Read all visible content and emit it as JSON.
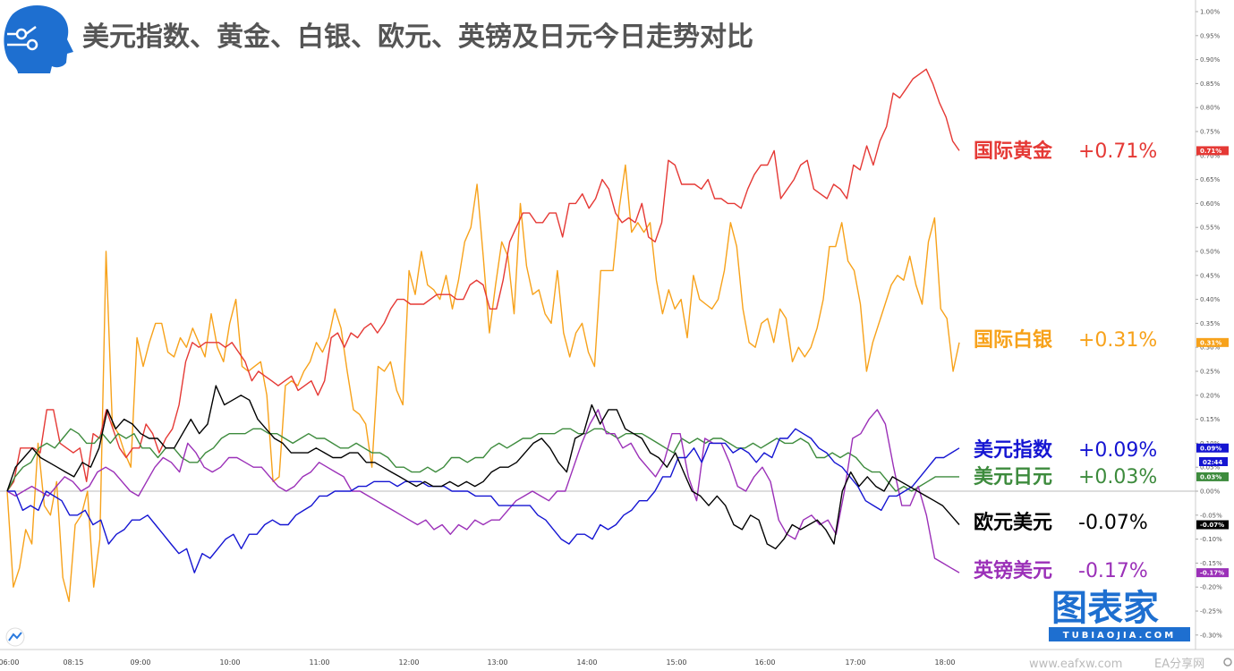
{
  "title": "美元指数、黄金、白银、欧元、英镑及日元今日走势对比",
  "colors": {
    "gold": "#e53935",
    "silver": "#f7a21b",
    "dxy": "#1515d2",
    "jpy": "#3d8b3d",
    "eur": "#000000",
    "gbp": "#9b30b8",
    "brand": "#1e6fd0",
    "zero_line": "#bbbbbb"
  },
  "watermark": {
    "main": "图表家",
    "sub": "TUBIAOJIA.COM"
  },
  "footer": {
    "site": "www.eafxw.com",
    "share": "EA分享网"
  },
  "time_badge": "02:44",
  "chart_data": {
    "type": "line",
    "x_ticks": [
      "06:00",
      "08:15",
      "09:00",
      "10:00",
      "11:00",
      "12:00",
      "13:00",
      "14:00",
      "15:00",
      "16:00",
      "17:00",
      "18:00"
    ],
    "y_ticks": [
      "1.00%",
      "0.95%",
      "0.90%",
      "0.85%",
      "0.80%",
      "0.75%",
      "0.70%",
      "0.65%",
      "0.60%",
      "0.55%",
      "0.50%",
      "0.45%",
      "0.40%",
      "0.35%",
      "0.30%",
      "0.25%",
      "0.20%",
      "0.15%",
      "0.10%",
      "0.05%",
      "0.00%",
      "-0.05%",
      "-0.10%",
      "-0.15%",
      "-0.20%",
      "-0.25%",
      "-0.30%"
    ],
    "ylim": [
      -0.33,
      1.02
    ],
    "unit": "%",
    "grid": false,
    "series": [
      {
        "key": "gold",
        "name": "国际黄金",
        "label": "+0.71%",
        "tag": "0.71%",
        "values": [
          0.0,
          0.02,
          0.09,
          0.09,
          0.09,
          0.08,
          0.17,
          0.17,
          0.1,
          0.09,
          0.08,
          0.09,
          0.02,
          0.12,
          0.11,
          0.17,
          0.13,
          0.09,
          0.07,
          0.09,
          0.09,
          0.14,
          0.12,
          0.08,
          0.11,
          0.13,
          0.18,
          0.27,
          0.31,
          0.3,
          0.31,
          0.31,
          0.31,
          0.3,
          0.31,
          0.29,
          0.27,
          0.23,
          0.25,
          0.24,
          0.23,
          0.22,
          0.23,
          0.24,
          0.21,
          0.22,
          0.23,
          0.2,
          0.23,
          0.32,
          0.33,
          0.3,
          0.33,
          0.32,
          0.34,
          0.35,
          0.33,
          0.35,
          0.38,
          0.4,
          0.4,
          0.39,
          0.39,
          0.39,
          0.4,
          0.41,
          0.41,
          0.41,
          0.4,
          0.4,
          0.43,
          0.44,
          0.43,
          0.38,
          0.38,
          0.44,
          0.52,
          0.55,
          0.58,
          0.58,
          0.56,
          0.56,
          0.58,
          0.58,
          0.53,
          0.6,
          0.6,
          0.62,
          0.59,
          0.61,
          0.65,
          0.63,
          0.58,
          0.56,
          0.57,
          0.56,
          0.6,
          0.53,
          0.52,
          0.56,
          0.69,
          0.68,
          0.64,
          0.64,
          0.64,
          0.63,
          0.65,
          0.61,
          0.61,
          0.6,
          0.6,
          0.59,
          0.63,
          0.66,
          0.68,
          0.68,
          0.71,
          0.61,
          0.63,
          0.65,
          0.68,
          0.69,
          0.63,
          0.62,
          0.61,
          0.64,
          0.63,
          0.61,
          0.68,
          0.67,
          0.72,
          0.68,
          0.73,
          0.76,
          0.83,
          0.82,
          0.84,
          0.86,
          0.87,
          0.88,
          0.85,
          0.81,
          0.78,
          0.73,
          0.71
        ]
      },
      {
        "key": "silver",
        "name": "国际白银",
        "label": "+0.31%",
        "tag": "0.31%",
        "values": [
          0.0,
          -0.2,
          -0.16,
          -0.08,
          -0.11,
          0.1,
          -0.03,
          -0.05,
          0.02,
          -0.18,
          -0.23,
          -0.07,
          -0.05,
          0.0,
          -0.2,
          -0.1,
          0.5,
          0.14,
          0.12,
          0.08,
          0.05,
          0.32,
          0.26,
          0.31,
          0.35,
          0.35,
          0.29,
          0.28,
          0.32,
          0.3,
          0.34,
          0.31,
          0.28,
          0.37,
          0.3,
          0.27,
          0.35,
          0.4,
          0.26,
          0.25,
          0.26,
          0.27,
          0.2,
          0.02,
          0.03,
          0.22,
          0.23,
          0.22,
          0.25,
          0.27,
          0.31,
          0.29,
          0.32,
          0.38,
          0.34,
          0.25,
          0.17,
          0.16,
          0.14,
          0.05,
          0.26,
          0.25,
          0.27,
          0.21,
          0.18,
          0.46,
          0.41,
          0.5,
          0.43,
          0.42,
          0.4,
          0.45,
          0.38,
          0.44,
          0.52,
          0.55,
          0.64,
          0.49,
          0.33,
          0.43,
          0.52,
          0.49,
          0.37,
          0.6,
          0.47,
          0.41,
          0.42,
          0.37,
          0.35,
          0.46,
          0.33,
          0.28,
          0.33,
          0.35,
          0.29,
          0.26,
          0.46,
          0.46,
          0.46,
          0.59,
          0.68,
          0.54,
          0.56,
          0.54,
          0.56,
          0.44,
          0.37,
          0.42,
          0.38,
          0.4,
          0.32,
          0.45,
          0.4,
          0.39,
          0.38,
          0.4,
          0.46,
          0.56,
          0.51,
          0.38,
          0.31,
          0.3,
          0.35,
          0.36,
          0.31,
          0.38,
          0.36,
          0.27,
          0.3,
          0.28,
          0.3,
          0.34,
          0.4,
          0.51,
          0.51,
          0.56,
          0.48,
          0.46,
          0.39,
          0.25,
          0.31,
          0.35,
          0.39,
          0.43,
          0.45,
          0.44,
          0.49,
          0.43,
          0.39,
          0.52,
          0.57,
          0.38,
          0.36,
          0.25,
          0.31
        ]
      },
      {
        "key": "dxy",
        "name": "美元指数",
        "label": "+0.09%",
        "tag": "0.09%",
        "values": [
          0.0,
          0.0,
          -0.04,
          -0.03,
          -0.04,
          0.0,
          -0.01,
          -0.02,
          -0.05,
          -0.05,
          -0.04,
          -0.07,
          -0.06,
          -0.11,
          -0.09,
          -0.08,
          -0.06,
          -0.06,
          -0.05,
          -0.07,
          -0.09,
          -0.11,
          -0.13,
          -0.12,
          -0.17,
          -0.13,
          -0.14,
          -0.12,
          -0.1,
          -0.09,
          -0.12,
          -0.09,
          -0.09,
          -0.07,
          -0.06,
          -0.07,
          -0.07,
          -0.05,
          -0.04,
          -0.03,
          -0.01,
          -0.01,
          0.0,
          0.0,
          0.0,
          0.01,
          0.01,
          0.02,
          0.02,
          0.02,
          0.01,
          0.02,
          0.02,
          0.02,
          0.01,
          0.01,
          0.01,
          0.0,
          0.0,
          0.0,
          -0.01,
          -0.01,
          -0.01,
          -0.03,
          -0.03,
          -0.03,
          -0.03,
          -0.03,
          -0.05,
          -0.06,
          -0.08,
          -0.1,
          -0.11,
          -0.09,
          -0.09,
          -0.1,
          -0.07,
          -0.08,
          -0.07,
          -0.05,
          -0.04,
          -0.02,
          -0.02,
          0.0,
          0.03,
          0.03,
          0.07,
          0.07,
          0.09,
          0.06,
          0.1,
          0.1,
          0.1,
          0.08,
          0.09,
          0.08,
          0.06,
          0.08,
          0.07,
          0.11,
          0.11,
          0.13,
          0.12,
          0.11,
          0.09,
          0.08,
          0.06,
          0.05,
          0.03,
          0.01,
          -0.02,
          -0.03,
          -0.04,
          -0.01,
          -0.01,
          0.0,
          0.01,
          0.03,
          0.05,
          0.07,
          0.07,
          0.08,
          0.09
        ]
      },
      {
        "key": "jpy",
        "name": "美元日元",
        "label": "+0.03%",
        "tag": "0.03%",
        "values": [
          0.0,
          0.03,
          0.05,
          0.06,
          0.09,
          0.1,
          0.09,
          0.11,
          0.13,
          0.12,
          0.1,
          0.1,
          0.12,
          0.1,
          0.12,
          0.11,
          0.12,
          0.09,
          0.09,
          0.07,
          0.09,
          0.09,
          0.07,
          0.06,
          0.06,
          0.08,
          0.09,
          0.11,
          0.12,
          0.12,
          0.12,
          0.13,
          0.13,
          0.12,
          0.12,
          0.11,
          0.1,
          0.11,
          0.12,
          0.11,
          0.11,
          0.1,
          0.09,
          0.09,
          0.1,
          0.09,
          0.08,
          0.08,
          0.07,
          0.05,
          0.05,
          0.04,
          0.04,
          0.05,
          0.04,
          0.05,
          0.07,
          0.07,
          0.06,
          0.07,
          0.07,
          0.09,
          0.1,
          0.09,
          0.1,
          0.11,
          0.11,
          0.12,
          0.12,
          0.12,
          0.13,
          0.13,
          0.12,
          0.12,
          0.13,
          0.13,
          0.12,
          0.11,
          0.12,
          0.12,
          0.12,
          0.11,
          0.1,
          0.09,
          0.08,
          0.11,
          0.1,
          0.11,
          0.1,
          0.11,
          0.11,
          0.1,
          0.09,
          0.09,
          0.1,
          0.09,
          0.1,
          0.11,
          0.1,
          0.1,
          0.11,
          0.1,
          0.07,
          0.07,
          0.08,
          0.07,
          0.08,
          0.07,
          0.05,
          0.04,
          0.04,
          0.02,
          0.0,
          0.01,
          0.0,
          0.01,
          0.02,
          0.03,
          0.03,
          0.03,
          0.03
        ]
      },
      {
        "key": "eur",
        "name": "欧元美元",
        "label": "-0.07%",
        "tag": "-0.07%",
        "values": [
          0.0,
          0.05,
          0.07,
          0.09,
          0.07,
          0.06,
          0.05,
          0.04,
          0.03,
          0.06,
          0.05,
          0.09,
          0.17,
          0.13,
          0.15,
          0.14,
          0.12,
          0.11,
          0.11,
          0.09,
          0.09,
          0.12,
          0.15,
          0.12,
          0.14,
          0.22,
          0.18,
          0.19,
          0.2,
          0.19,
          0.15,
          0.13,
          0.11,
          0.1,
          0.08,
          0.08,
          0.08,
          0.09,
          0.08,
          0.07,
          0.07,
          0.08,
          0.08,
          0.06,
          0.06,
          0.05,
          0.04,
          0.03,
          0.02,
          0.01,
          0.02,
          0.01,
          0.01,
          0.02,
          0.01,
          0.02,
          0.01,
          0.02,
          0.04,
          0.05,
          0.05,
          0.06,
          0.08,
          0.1,
          0.11,
          0.09,
          0.06,
          0.04,
          0.11,
          0.12,
          0.18,
          0.14,
          0.17,
          0.17,
          0.13,
          0.12,
          0.11,
          0.08,
          0.07,
          0.05,
          0.08,
          0.04,
          0.0,
          -0.01,
          -0.03,
          -0.01,
          -0.03,
          -0.07,
          -0.08,
          -0.05,
          -0.06,
          -0.11,
          -0.12,
          -0.1,
          -0.07,
          -0.08,
          -0.07,
          -0.06,
          -0.08,
          -0.11,
          0.0,
          0.04,
          0.01,
          0.03,
          0.01,
          0.0,
          0.03,
          0.02,
          0.01,
          0.0,
          -0.01,
          -0.02,
          -0.03,
          -0.05,
          -0.07
        ]
      },
      {
        "key": "gbp",
        "name": "英镑美元",
        "label": "-0.17%",
        "tag": "-0.17%",
        "values": [
          0.0,
          -0.01,
          0.0,
          0.01,
          0.0,
          -0.01,
          0.01,
          0.03,
          0.02,
          0.0,
          0.01,
          0.04,
          0.05,
          0.04,
          0.02,
          0.0,
          -0.01,
          0.02,
          0.05,
          0.07,
          0.06,
          0.04,
          0.1,
          0.08,
          0.05,
          0.04,
          0.05,
          0.07,
          0.07,
          0.06,
          0.05,
          0.05,
          0.03,
          0.01,
          0.0,
          0.01,
          0.03,
          0.04,
          0.06,
          0.05,
          0.04,
          0.03,
          0.0,
          0.0,
          -0.01,
          -0.02,
          -0.03,
          -0.04,
          -0.05,
          -0.06,
          -0.07,
          -0.06,
          -0.08,
          -0.07,
          -0.09,
          -0.07,
          -0.08,
          -0.06,
          -0.07,
          -0.06,
          -0.06,
          -0.04,
          -0.02,
          -0.01,
          0.0,
          -0.01,
          -0.02,
          0.0,
          0.0,
          0.05,
          0.1,
          0.14,
          0.17,
          0.12,
          0.12,
          0.09,
          0.1,
          0.07,
          0.05,
          0.03,
          0.06,
          0.12,
          0.12,
          0.03,
          -0.02,
          0.11,
          0.1,
          0.1,
          0.06,
          0.01,
          0.0,
          0.03,
          0.05,
          0.02,
          -0.06,
          -0.09,
          -0.1,
          -0.06,
          -0.05,
          -0.07,
          -0.06,
          -0.09,
          0.0,
          0.11,
          0.12,
          0.15,
          0.17,
          0.14,
          0.05,
          -0.03,
          -0.03,
          0.01,
          -0.05,
          -0.14,
          -0.15,
          -0.16,
          -0.17
        ]
      }
    ]
  }
}
